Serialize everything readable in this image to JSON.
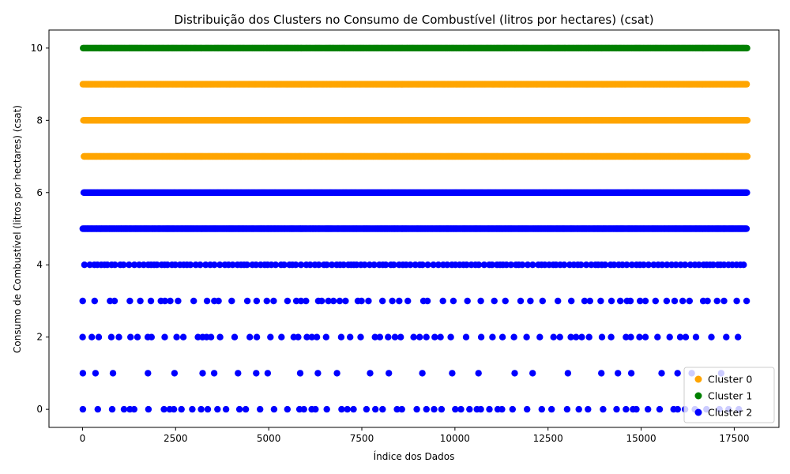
{
  "chart_data": {
    "type": "scatter",
    "title": "Distribuição dos Clusters no Consumo de Combustível (litros por hectares) (csat)",
    "xlabel": "Índice dos Dados",
    "ylabel": "Consumo de Combustível (litros por hectares) (csat)",
    "xlim": [
      -900,
      18700
    ],
    "ylim": [
      -0.5,
      10.5
    ],
    "x_ticks": [
      0,
      2500,
      5000,
      7500,
      10000,
      12500,
      15000,
      17500
    ],
    "y_ticks": [
      0,
      2,
      4,
      6,
      8,
      10
    ],
    "grid": false,
    "legend_position": "lower-right",
    "point_extent": {
      "x_min": 0,
      "x_max": 17850
    },
    "series": [
      {
        "name": "Cluster 0",
        "color": "#ffa500",
        "levels": [
          {
            "y": 7,
            "density": "high"
          },
          {
            "y": 8,
            "density": "high"
          },
          {
            "y": 9,
            "density": "high"
          }
        ]
      },
      {
        "name": "Cluster 1",
        "color": "#008000",
        "levels": [
          {
            "y": 10,
            "density": "high"
          }
        ]
      },
      {
        "name": "Cluster 2",
        "color": "#0000ff",
        "levels": [
          {
            "y": 0,
            "density": "low"
          },
          {
            "y": 1,
            "density": "very-low"
          },
          {
            "y": 2,
            "density": "low"
          },
          {
            "y": 3,
            "density": "low"
          },
          {
            "y": 4,
            "density": "medium"
          },
          {
            "y": 5,
            "density": "high"
          },
          {
            "y": 6,
            "density": "high"
          }
        ]
      }
    ]
  }
}
